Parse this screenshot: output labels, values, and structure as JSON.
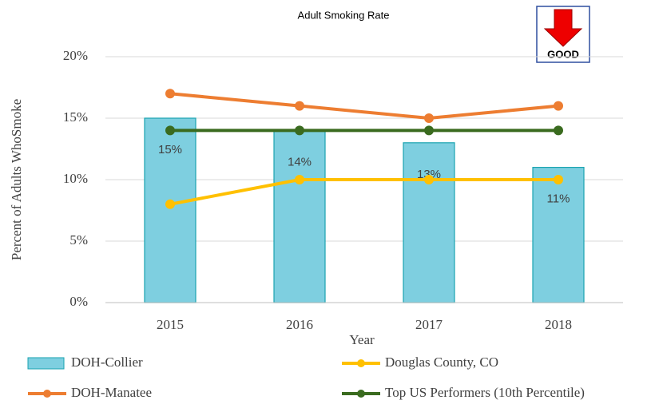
{
  "chart_data": {
    "type": "combo",
    "title": "Adult Smoking Rate",
    "x_label": "Year",
    "y_label": "Percent of Adults WhoSmoke",
    "annotation": "GOOD",
    "categories": [
      "2015",
      "2016",
      "2017",
      "2018"
    ],
    "ylim": [
      0,
      20
    ],
    "yticks": [
      {
        "value": 0,
        "label": "0%"
      },
      {
        "value": 5,
        "label": "5%"
      },
      {
        "value": 10,
        "label": "10%"
      },
      {
        "value": 15,
        "label": "15%"
      },
      {
        "value": 20,
        "label": "20%"
      }
    ],
    "grid": true,
    "series": [
      {
        "name": "DOH-Collier",
        "type": "bar",
        "color": "#7ecfe0",
        "values": [
          15,
          14,
          13,
          11
        ],
        "value_labels": [
          "15%",
          "14%",
          "13%",
          "11%"
        ]
      },
      {
        "name": "Douglas County, CO",
        "type": "line",
        "color": "#ffc000",
        "values": [
          8,
          10,
          10,
          10
        ]
      },
      {
        "name": "DOH-Manatee",
        "type": "line",
        "color": "#ed7d31",
        "values": [
          17,
          16,
          15,
          16
        ]
      },
      {
        "name": "Top US Performers (10th Percentile)",
        "type": "line",
        "color": "#3a6b1f",
        "values": [
          14,
          14,
          14,
          14
        ]
      }
    ]
  }
}
